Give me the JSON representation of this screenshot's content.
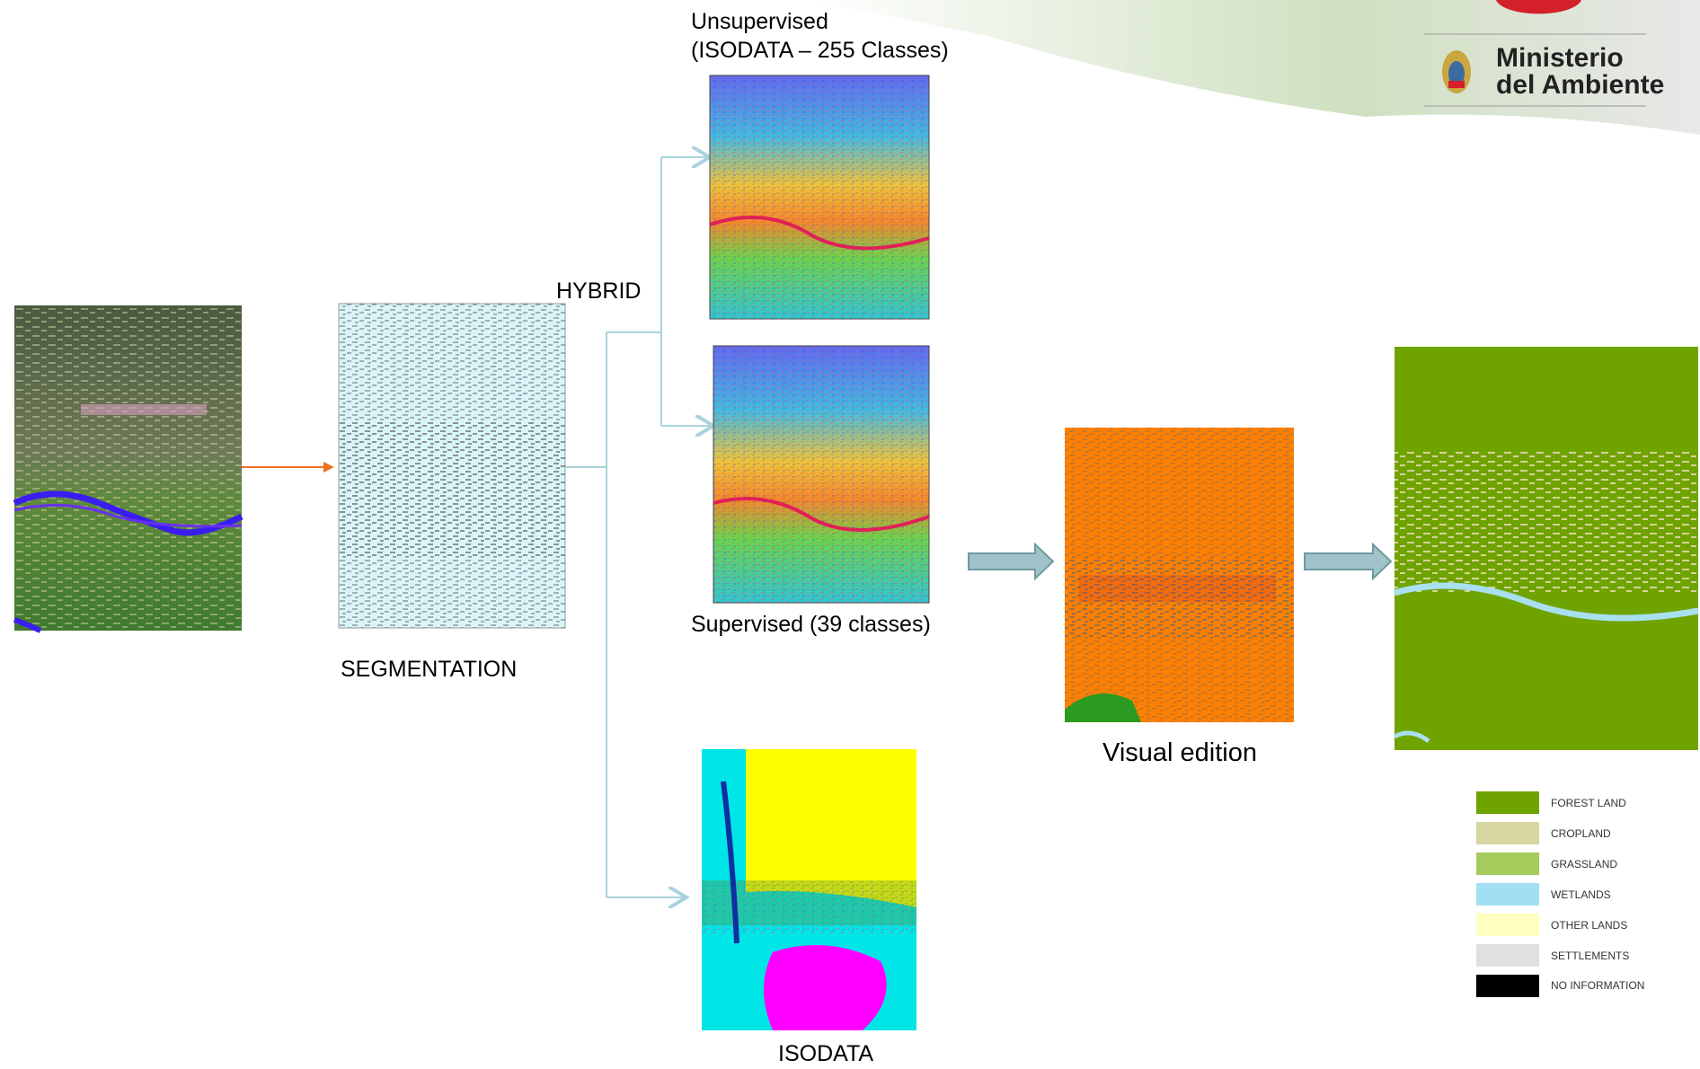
{
  "header": {
    "logo_line1": "Ministerio",
    "logo_line2": "del Ambiente"
  },
  "nodes": [
    {
      "label": "SEGMENTATION"
    },
    {
      "label": "HYBRID"
    },
    {
      "label_line1": "Unsupervised",
      "label_line2": "(ISODATA – 255 Classes)"
    },
    {
      "label": "Supervised (39 classes)"
    },
    {
      "label": "ISODATA"
    },
    {
      "label": "Visual edition"
    }
  ],
  "legend": [
    "FOREST LAND",
    "CROPLAND",
    "GRASSLAND",
    "WETLANDS",
    "OTHER LANDS",
    "SETTLEMENTS",
    "NO INFORMATION"
  ]
}
